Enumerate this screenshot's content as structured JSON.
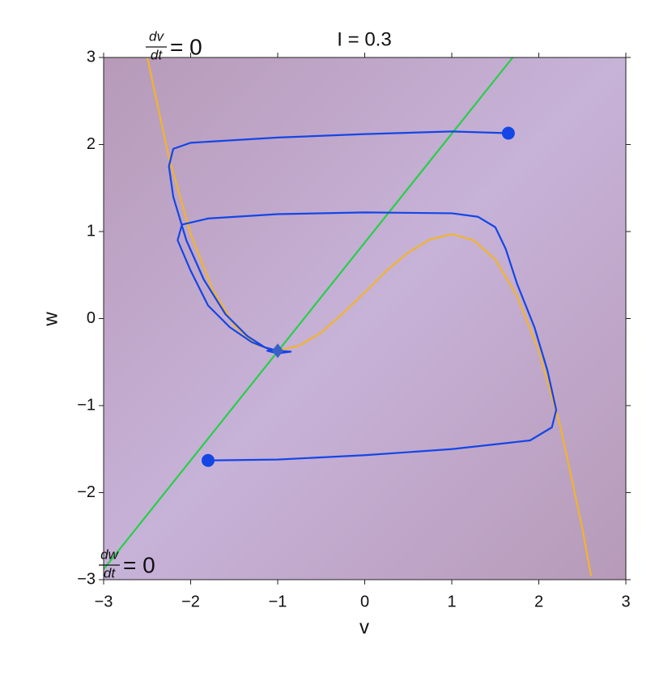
{
  "chart_data": {
    "type": "line",
    "title": "I = 0.3",
    "xlabel": "v",
    "ylabel": "w",
    "annotations": [
      {
        "numerator": "dv",
        "denominator": "dt",
        "text": "= 0"
      },
      {
        "numerator": "dw",
        "denominator": "dt",
        "text": "= 0"
      }
    ],
    "xlim": [
      -3,
      3
    ],
    "ylim": [
      -3,
      3
    ],
    "xticks": [
      {
        "value": -3,
        "label": "−3"
      },
      {
        "value": -2,
        "label": "−2"
      },
      {
        "value": -1,
        "label": "−1"
      },
      0,
      1,
      2,
      3
    ],
    "yticks": [
      {
        "value": -3,
        "label": "−3"
      },
      {
        "value": -2,
        "label": "−2"
      },
      {
        "value": -1,
        "label": "−1"
      },
      0,
      1,
      2,
      3
    ],
    "series": [
      {
        "color": "#f2b42a",
        "x": [
          -2.5,
          -2.25,
          -2.0,
          -1.75,
          -1.5,
          -1.25,
          -1.0,
          -0.75,
          -0.5,
          -0.25,
          0,
          0.25,
          0.5,
          0.75,
          1.0,
          1.25,
          1.5,
          1.75,
          2.0,
          2.25,
          2.5,
          2.6
        ],
        "y": [
          3.01,
          1.85,
          0.97,
          0.34,
          -0.08,
          -0.3,
          -0.37,
          -0.31,
          -0.16,
          0.06,
          0.3,
          0.55,
          0.76,
          0.91,
          0.97,
          0.9,
          0.68,
          0.26,
          -0.37,
          -1.25,
          -2.41,
          -2.96
        ]
      },
      {
        "color": "#27cf48",
        "x": [
          -3,
          1.7
        ],
        "y": [
          -2.88,
          3.0
        ]
      },
      {
        "color": "#1446e6",
        "x": [
          1.65,
          1.0,
          0,
          -1,
          -2.0,
          -2.2,
          -2.25,
          -2.2,
          -2.05,
          -1.85,
          -1.6,
          -1.35,
          -1.15,
          -1.0,
          -0.85,
          -1.0,
          -1.12,
          -1.0
        ],
        "y": [
          2.13,
          2.15,
          2.12,
          2.08,
          2.02,
          1.95,
          1.75,
          1.4,
          0.9,
          0.45,
          0.05,
          -0.2,
          -0.33,
          -0.37,
          -0.38,
          -0.4,
          -0.37,
          -0.35
        ]
      },
      {
        "color": "#1446e6",
        "x": [
          -1.8,
          -1,
          0,
          1,
          1.9,
          2.15,
          2.2,
          2.1,
          1.95,
          1.75,
          1.62,
          1.5,
          1.3,
          1.0,
          0,
          -1,
          -1.8,
          -2.1,
          -2.15,
          -2.0,
          -1.8,
          -1.55,
          -1.3,
          -1.1,
          -1.0
        ],
        "y": [
          -1.63,
          -1.62,
          -1.57,
          -1.5,
          -1.4,
          -1.25,
          -1.05,
          -0.6,
          -0.1,
          0.4,
          0.8,
          1.05,
          1.17,
          1.21,
          1.22,
          1.2,
          1.15,
          1.08,
          0.9,
          0.55,
          0.15,
          -0.1,
          -0.27,
          -0.35,
          -0.37
        ]
      }
    ],
    "points": [
      {
        "x": 1.65,
        "y": 2.13,
        "marker": "circle",
        "color": "#1446e6"
      },
      {
        "x": -1.8,
        "y": -1.63,
        "marker": "circle",
        "color": "#1446e6"
      },
      {
        "x": -1.0,
        "y": -0.37,
        "marker": "diamond",
        "color": "#3a5fc8"
      }
    ]
  }
}
